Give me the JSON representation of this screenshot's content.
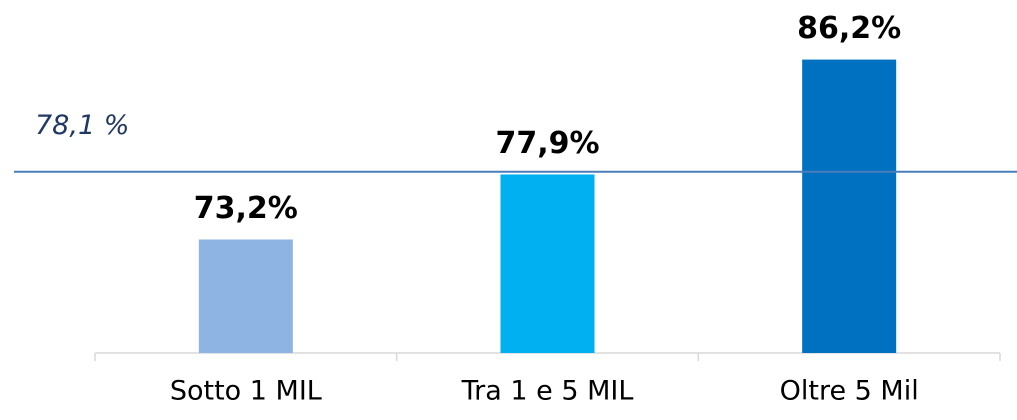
{
  "chart_data": {
    "type": "bar",
    "categories": [
      "Sotto 1 MIL",
      "Tra 1 e 5 MIL",
      "Oltre 5 Mil"
    ],
    "values": [
      73.2,
      77.9,
      86.2
    ],
    "value_labels": [
      "73,2%",
      "77,9%",
      "86,2%"
    ],
    "colors": [
      "#8eb4e3",
      "#00b0f0",
      "#0070c0"
    ],
    "ylim": [
      65,
      90
    ],
    "reference_line": {
      "value": 78.1,
      "label": "78,1 %",
      "color": "#4a7ebb"
    }
  }
}
